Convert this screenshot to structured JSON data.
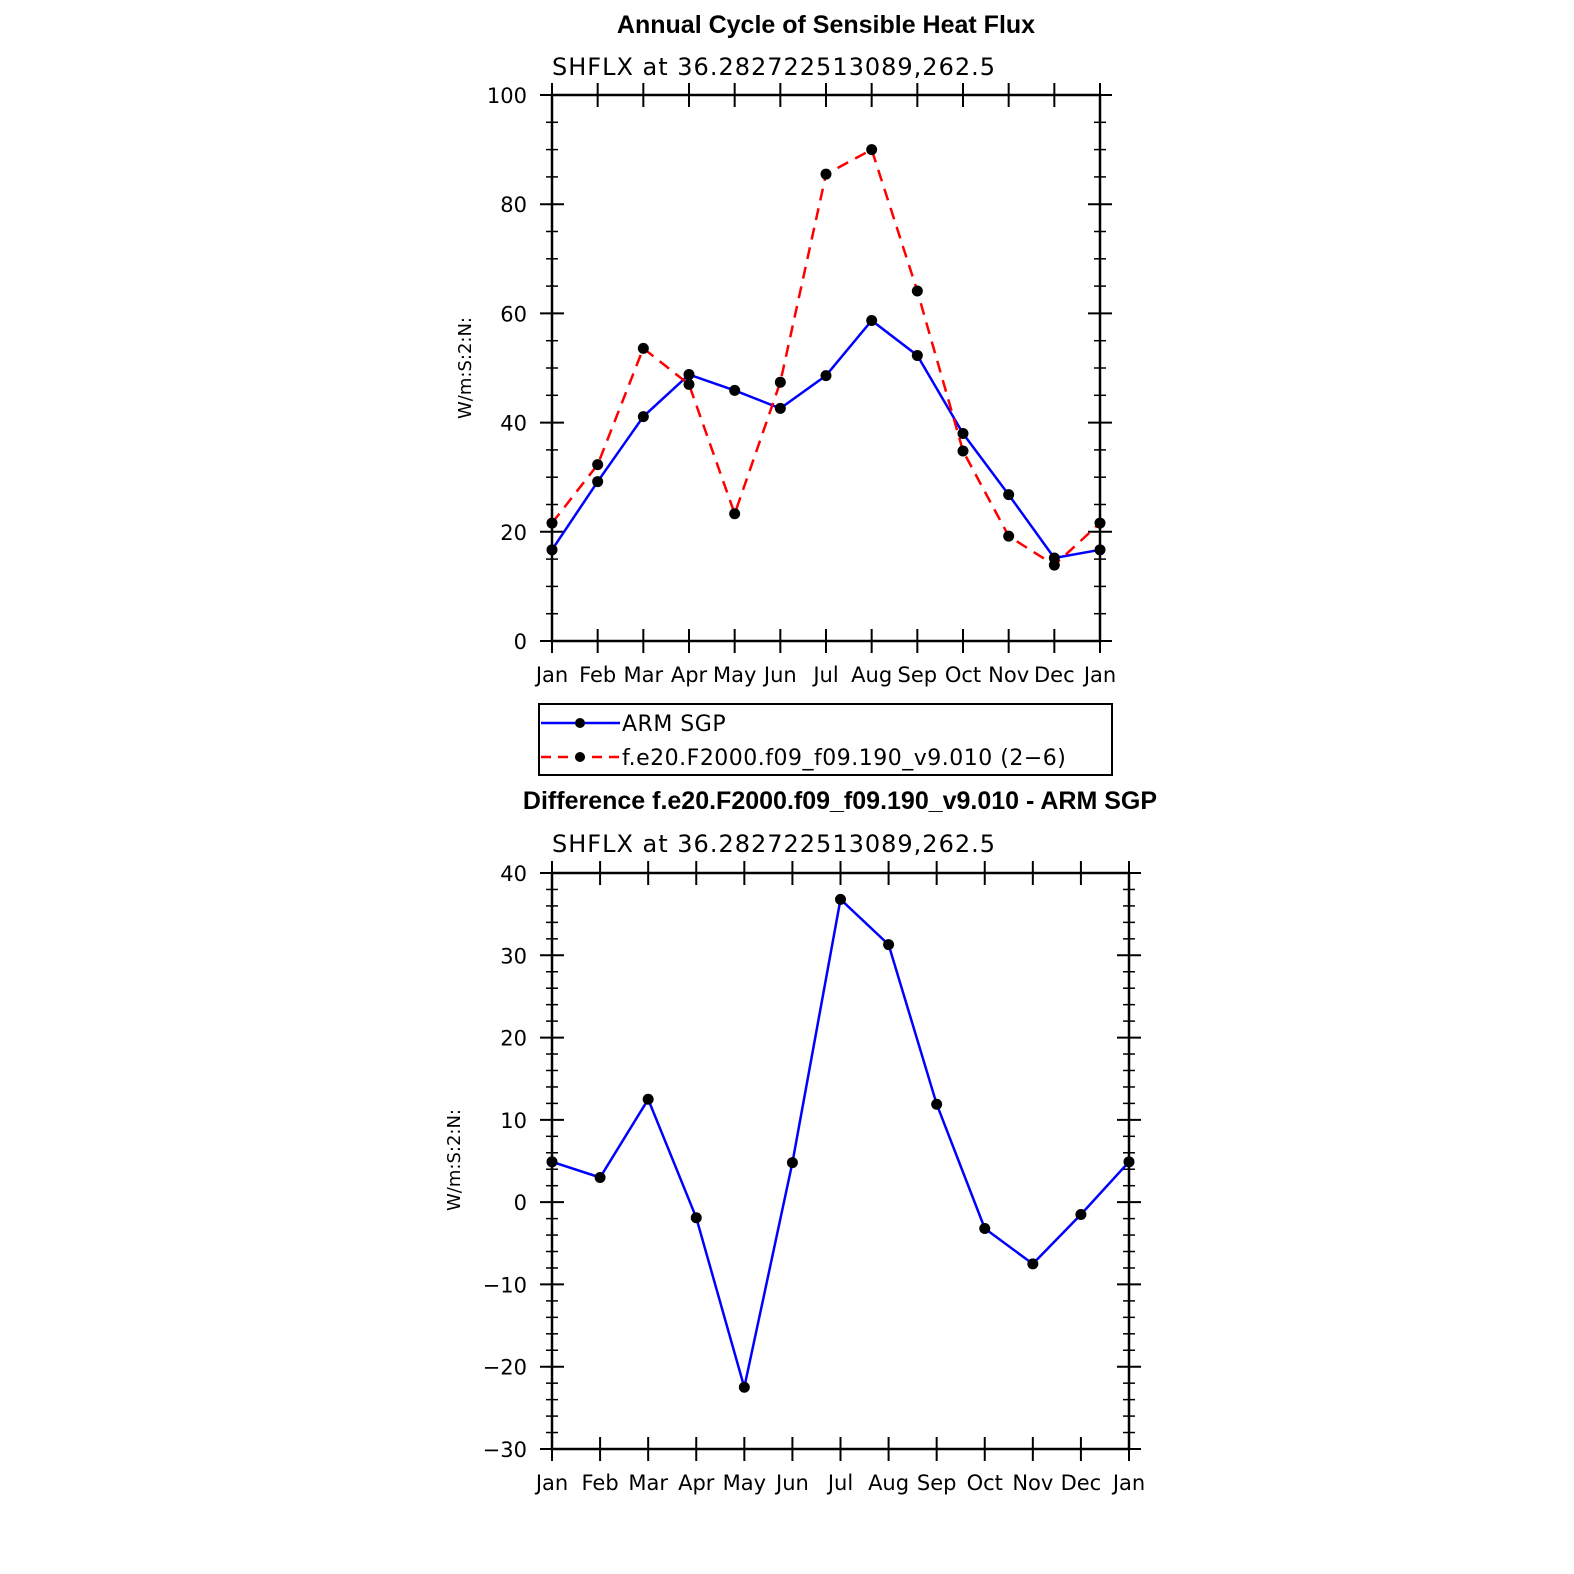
{
  "chart_data": [
    {
      "type": "line",
      "title": "Annual Cycle of Sensible Heat Flux",
      "subtitle": "SHFLX at 36.282722513089,262.5",
      "xlabel": "",
      "ylabel": "W/m:S:2:N:",
      "categories": [
        "Jan",
        "Feb",
        "Mar",
        "Apr",
        "May",
        "Jun",
        "Jul",
        "Aug",
        "Sep",
        "Oct",
        "Nov",
        "Dec",
        "Jan"
      ],
      "ylim": [
        0,
        100
      ],
      "yticks": [
        0,
        20,
        40,
        60,
        80,
        100
      ],
      "ytick_labels": [
        "0",
        "20",
        "40",
        "60",
        "80",
        "100"
      ],
      "grid": false,
      "legend_position": "bottom",
      "series": [
        {
          "name": "ARM SGP",
          "color": "#0000ff",
          "style": "solid",
          "values": [
            16.7,
            29.2,
            41.1,
            48.8,
            45.9,
            42.6,
            48.6,
            58.7,
            52.3,
            38.0,
            26.8,
            15.2,
            16.7
          ]
        },
        {
          "name": "f.e20.F2000.f09_f09.190_v9.010 (2−6)",
          "color": "#ff0000",
          "style": "dashed",
          "values": [
            21.6,
            32.3,
            53.6,
            47.0,
            23.3,
            47.4,
            85.5,
            90.0,
            64.1,
            34.8,
            19.2,
            13.9,
            21.6
          ]
        }
      ]
    },
    {
      "type": "line",
      "title": "Difference f.e20.F2000.f09_f09.190_v9.010 - ARM SGP",
      "subtitle": "SHFLX at 36.282722513089,262.5",
      "xlabel": "",
      "ylabel": "W/m:S:2:N:",
      "categories": [
        "Jan",
        "Feb",
        "Mar",
        "Apr",
        "May",
        "Jun",
        "Jul",
        "Aug",
        "Sep",
        "Oct",
        "Nov",
        "Dec",
        "Jan"
      ],
      "ylim": [
        -30,
        40
      ],
      "yticks": [
        -30,
        -20,
        -10,
        0,
        10,
        20,
        30,
        40
      ],
      "ytick_labels": [
        "−30",
        "−20",
        "−10",
        "0",
        "10",
        "20",
        "30",
        "40"
      ],
      "grid": false,
      "series": [
        {
          "color": "#0000ff",
          "style": "solid",
          "values": [
            4.9,
            3.0,
            12.5,
            -1.9,
            -22.5,
            4.8,
            36.8,
            31.3,
            11.9,
            -3.2,
            -7.5,
            -1.5,
            4.9
          ]
        }
      ]
    }
  ]
}
